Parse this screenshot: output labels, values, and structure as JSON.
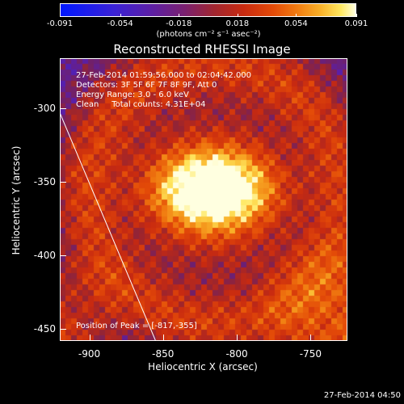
{
  "chart_data": {
    "type": "heatmap",
    "title": "Reconstructed RHESSI Image",
    "xlabel": "Heliocentric X (arcsec)",
    "ylabel": "Heliocentric Y (arcsec)",
    "xlim": [
      -920,
      -725
    ],
    "ylim": [
      -458,
      -266
    ],
    "x_ticks": [
      "-900",
      "-850",
      "-800",
      "-750"
    ],
    "x_tick_values": [
      -900,
      -850,
      -800,
      -750
    ],
    "y_ticks": [
      "-300",
      "-350",
      "-400",
      "-450"
    ],
    "y_tick_values": [
      -300,
      -350,
      -400,
      -450
    ],
    "colorbar": {
      "ticks": [
        "-0.091",
        "-0.054",
        "-0.018",
        "0.018",
        "0.054",
        "0.091"
      ],
      "tick_values": [
        -0.091,
        -0.054,
        -0.018,
        0.018,
        0.054,
        0.091
      ],
      "units": "(photons cm⁻² s⁻¹ asec⁻²)",
      "low_color": "#0018ff",
      "high_color": "#ffffe0"
    },
    "annotations": {
      "time_range": "27-Feb-2014 01:59:56.000 to 02:04:42.000",
      "detectors": "Detectors: 3F 5F 6F 7F 8F 9F, Att 0",
      "energy_range": "Energy Range: 3.0 - 6.0 keV",
      "method": "Clean     Total counts: 4.31E+04",
      "peak": "Position of Peak = [-817,-355]"
    },
    "peak": {
      "x": -817,
      "y": -355
    },
    "limb_line": [
      [
        -920,
        -303
      ],
      [
        -855,
        -458
      ]
    ]
  },
  "footer": {
    "timestamp": "27-Feb-2014 04:50"
  }
}
